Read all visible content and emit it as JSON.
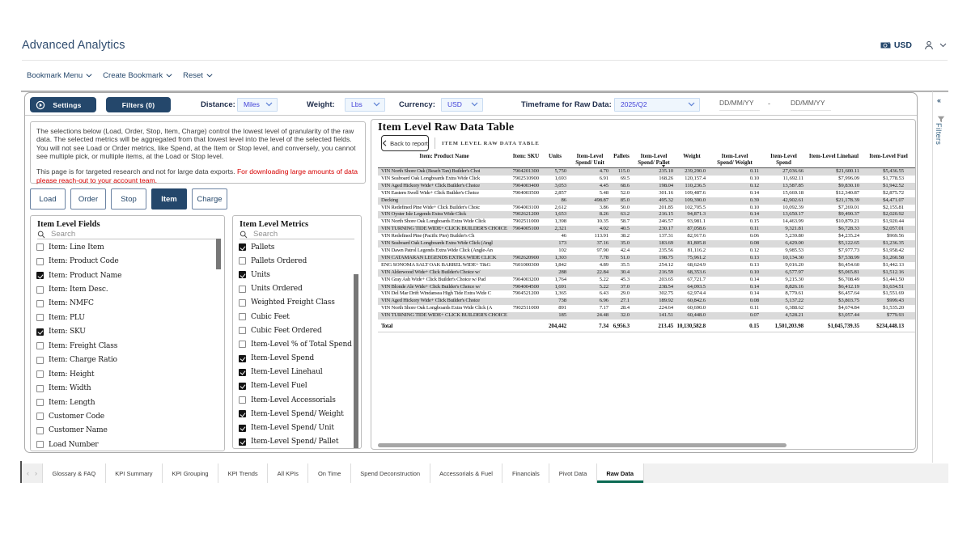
{
  "header": {
    "title": "Advanced Analytics",
    "currency_badge": "USD"
  },
  "menu": {
    "items": [
      {
        "label": "Bookmark Menu"
      },
      {
        "label": "Create Bookmark"
      },
      {
        "label": "Reset"
      }
    ]
  },
  "toolbar": {
    "settings_label": "Settings",
    "filters_label": "Filters (0)",
    "distance_label": "Distance:",
    "distance_value": "Miles",
    "weight_label": "Weight:",
    "weight_value": "Lbs",
    "currency_label": "Currency:",
    "currency_value": "USD",
    "timeframe_label": "Timeframe for Raw Data:",
    "timeframe_value": "2025/Q2",
    "date_from_placeholder": "DD/MM/YY",
    "date_separator": "-",
    "date_to_placeholder": "DD/MM/YY"
  },
  "instructions": {
    "paragraph1": "The selections below (Load, Order, Stop, Item, Charge) control the lowest level of granularity of the raw data.  The selected metrics will be aggregated from that lowest level into the level of the selected fields. You will not see Load or Order metrics, like Spend, at the Item or Stop level, and conversely, you cannot see multiple pick, or multiple items, at the Load or Stop level.",
    "paragraph2_black": "This page is for targeted research and not for large data exports.",
    "paragraph2_red": "For downloading large amounts of data please reach-out to your account team."
  },
  "level_buttons": [
    {
      "label": "Load",
      "active": false
    },
    {
      "label": "Order",
      "active": false
    },
    {
      "label": "Stop",
      "active": false
    },
    {
      "label": "Item",
      "active": true
    },
    {
      "label": "Charge",
      "active": false
    }
  ],
  "fields_panel": {
    "title": "Item Level Fields",
    "search_placeholder": "Search",
    "items": [
      {
        "label": "Item: Line Item",
        "checked": false
      },
      {
        "label": "Item: Product Code",
        "checked": false
      },
      {
        "label": "Item: Product Name",
        "checked": true
      },
      {
        "label": "Item: Item Desc.",
        "checked": false
      },
      {
        "label": "Item: NMFC",
        "checked": false
      },
      {
        "label": "Item: PLU",
        "checked": false
      },
      {
        "label": "Item: SKU",
        "checked": true
      },
      {
        "label": "Item: Freight Class",
        "checked": false
      },
      {
        "label": "Item: Charge Ratio",
        "checked": false
      },
      {
        "label": "Item: Height",
        "checked": false
      },
      {
        "label": "Item: Width",
        "checked": false
      },
      {
        "label": "Item: Length",
        "checked": false
      },
      {
        "label": "Customer Code",
        "checked": false
      },
      {
        "label": "Customer Name",
        "checked": false
      },
      {
        "label": "Load Number",
        "checked": false
      }
    ]
  },
  "metrics_panel": {
    "title": "Item Level Metrics",
    "search_placeholder": "Search",
    "items": [
      {
        "label": "Pallets",
        "checked": true
      },
      {
        "label": "Pallets Ordered",
        "checked": false
      },
      {
        "label": "Units",
        "checked": true
      },
      {
        "label": "Units Ordered",
        "checked": false
      },
      {
        "label": "Weighted Freight Class",
        "checked": false
      },
      {
        "label": "Cubic Feet",
        "checked": false
      },
      {
        "label": "Cubic Feet Ordered",
        "checked": false
      },
      {
        "label": "Item-Level % of Total Spend",
        "checked": false
      },
      {
        "label": "Item-Level Spend",
        "checked": true
      },
      {
        "label": "Item-Level Linehaul",
        "checked": true
      },
      {
        "label": "Item-Level Fuel",
        "checked": true
      },
      {
        "label": "Item-Level Accessorials",
        "checked": false
      },
      {
        "label": "Item-Level Spend/ Weight",
        "checked": true
      },
      {
        "label": "Item-Level Spend/ Unit",
        "checked": true
      },
      {
        "label": "Item-Level Spend/ Pallet",
        "checked": true
      }
    ]
  },
  "table_panel": {
    "title": "Item Level Raw Data Table",
    "back_button_label": "Back to report",
    "caps_label": "ITEM LEVEL RAW DATA TABLE",
    "columns": [
      "Item: Product Name",
      "Item: SKU",
      "Units",
      "Item-Level Spend/ Unit",
      "Pallets",
      "Item-Level Spend/ Pallet",
      "Weight",
      "Item-Level Spend/ Weight",
      "Item-Level Spend",
      "Item-Level Linehaul",
      "Item-Level Fuel"
    ],
    "sorted_column_index": 5,
    "rows": [
      [
        "VIN North Shore Oak (Beach Tan) Builder's Choi",
        "7904201300",
        "5,750",
        "4.70",
        "115.0",
        "235.10",
        "239,290.0",
        "0.11",
        "27,036.66",
        "$21,600.11",
        "$5,436.55"
      ],
      [
        "VIN Seaboard Oak Longboards Extra Wide Click",
        "7902510900",
        "1,693",
        "6.91",
        "69.5",
        "168.26",
        "120,157.4",
        "0.10",
        "11,692.11",
        "$7,996.09",
        "$1,778.53"
      ],
      [
        "VIN Aged Hickory Wide+ Click Builder's Choice",
        "7904003400",
        "3,053",
        "4.45",
        "68.6",
        "198.04",
        "110,236.5",
        "0.12",
        "13,587.85",
        "$9,830.10",
        "$1,942.52"
      ],
      [
        "VIN Eastern Swell Wide+ Click Builder's Choice",
        "7904003500",
        "2,857",
        "5.48",
        "52.0",
        "301.16",
        "109,487.6",
        "0.14",
        "15,669.18",
        "$12,340.87",
        "$2,875.72"
      ],
      [
        "Decking",
        "",
        "86",
        "498.87",
        "85.0",
        "495.32",
        "109,390.0",
        "0.39",
        "42,902.61",
        "$21,178.39",
        "$4,471.07"
      ],
      [
        "VIN Redefined Pine Wide+ Click Builder's Choic",
        "7904003100",
        "2,612",
        "3.86",
        "50.0",
        "201.85",
        "102,705.5",
        "0.10",
        "10,092.39",
        "$7,269.01",
        "$2,155.81"
      ],
      [
        "VIN Oyster Isle Legends Extra Wide Click",
        "7902621200",
        "1,653",
        "8.26",
        "63.2",
        "216.15",
        "94,871.3",
        "0.14",
        "13,650.17",
        "$9,490.37",
        "$2,020.92"
      ],
      [
        "VIN North Shore Oak Longboards Extra Wide Click",
        "7902511000",
        "1,398",
        "10.35",
        "58.7",
        "246.57",
        "93,981.1",
        "0.15",
        "14,463.99",
        "$10,879.21",
        "$1,920.44"
      ],
      [
        "VIN TURNING TIDE WIDE+ CLICK BUILDER'S CHOICE",
        "7904005100",
        "2,321",
        "4.02",
        "40.5",
        "230.17",
        "87,058.6",
        "0.11",
        "9,321.81",
        "$6,728.33",
        "$2,057.01"
      ],
      [
        "VIN Redefined Pine (Pacific Pier) Builder's Ch",
        "",
        "46",
        "113.91",
        "38.2",
        "137.31",
        "82,917.6",
        "0.06",
        "5,239.80",
        "$4,235.24",
        "$969.56"
      ],
      [
        "VIN Seaboard Oak Longboards Extra Wide Click (Angl",
        "",
        "173",
        "37.16",
        "35.0",
        "183.69",
        "81,805.8",
        "0.08",
        "6,429.00",
        "$5,122.65",
        "$1,236.35"
      ],
      [
        "VIN Dawn Patrol Legends Extra Wide Click (Angle-An",
        "",
        "102",
        "97.90",
        "42.4",
        "235.56",
        "81,116.2",
        "0.12",
        "9,985.53",
        "$7,977.73",
        "$1,958.42"
      ],
      [
        "VIN CATAMARAN LEGENDS EXTRA WIDE CLICK",
        "7902620900",
        "1,303",
        "7.78",
        "51.0",
        "198.75",
        "75,961.2",
        "0.13",
        "10,134.30",
        "$7,538.99",
        "$1,260.58"
      ],
      [
        "ENG SONOMA SALT OAK BARREL WIDE+ T&G",
        "7601000300",
        "1,842",
        "4.89",
        "35.5",
        "254.12",
        "68,624.9",
        "0.13",
        "9,016.20",
        "$6,454.60",
        "$1,442.13"
      ],
      [
        "VIN Alderwood Wide+ Click Builder's Choice w/",
        "",
        "288",
        "22.84",
        "30.4",
        "216.59",
        "68,353.6",
        "0.10",
        "6,577.97",
        "$5,065.81",
        "$1,512.16"
      ],
      [
        "VIN Gray Ash Wide+ Click Builder's Choice w/ Pad",
        "7904003200",
        "1,764",
        "5.22",
        "45.3",
        "203.65",
        "67,721.7",
        "0.14",
        "9,215.30",
        "$6,708.49",
        "$1,441.50"
      ],
      [
        "VIN Blonde Ale Wide+ Click Builder's Choice w/",
        "7904004500",
        "1,691",
        "5.22",
        "37.0",
        "238.54",
        "64,093.5",
        "0.14",
        "8,826.16",
        "$6,412.19",
        "$1,634.51"
      ],
      [
        "VIN Del Mar Drift Windansea High Tide Extra Wide C",
        "7904521200",
        "1,365",
        "6.43",
        "29.0",
        "302.75",
        "62,974.4",
        "0.14",
        "8,779.61",
        "$6,457.64",
        "$1,551.69"
      ],
      [
        "VIN Aged Hickory Wide+ Click Builder's Choice",
        "",
        "738",
        "6.96",
        "27.1",
        "189.92",
        "60,842.6",
        "0.08",
        "5,137.22",
        "$3,803.75",
        "$999.43"
      ],
      [
        "VIN North Shore Oak Longboards Extra Wide Click (A",
        "7902511000",
        "891",
        "7.17",
        "28.4",
        "224.64",
        "60,690.0",
        "0.11",
        "6,388.62",
        "$4,674.84",
        "$1,535.20"
      ],
      [
        "VIN TURNING TIDE WIDE+ CLICK BUILDER'S CHOICE",
        "",
        "185",
        "24.48",
        "32.0",
        "141.51",
        "60,448.0",
        "0.07",
        "4,528.21",
        "$3,057.44",
        "$779.93"
      ]
    ],
    "total_row": [
      "Total",
      "",
      "204,442",
      "7.34",
      "6,956.3",
      "213.45",
      "10,130,582.8",
      "0.15",
      "1,501,203.98",
      "$1,045,739.35",
      "$234,448.13"
    ]
  },
  "filters_rail": {
    "label": "Filters"
  },
  "tab_bar": {
    "tabs": [
      {
        "label": "Glossary & FAQ",
        "active": false
      },
      {
        "label": "KPI Summary",
        "active": false
      },
      {
        "label": "KPI Grouping",
        "active": false
      },
      {
        "label": "KPI Trends",
        "active": false
      },
      {
        "label": "All KPIs",
        "active": false
      },
      {
        "label": "On Time",
        "active": false
      },
      {
        "label": "Spend Deconstruction",
        "active": false
      },
      {
        "label": "Accessorials & Fuel",
        "active": false
      },
      {
        "label": "Financials",
        "active": false
      },
      {
        "label": "Pivot Data",
        "active": false
      },
      {
        "label": "Raw Data",
        "active": true
      }
    ]
  },
  "colors": {
    "accent_navy": "#24476B",
    "active_tab_underline": "#0B6A53",
    "row_stripe": "#DADADA",
    "dropdown_text": "#4343D8",
    "alert_red": "#D60000"
  }
}
